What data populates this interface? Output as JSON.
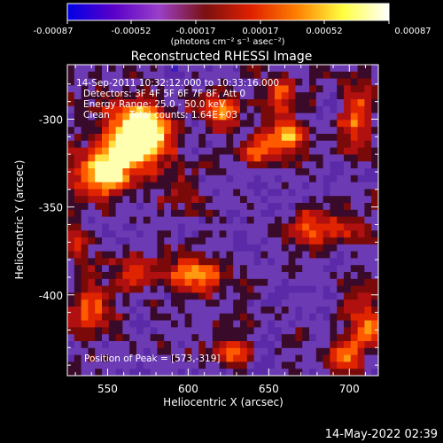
{
  "colorbar": {
    "tick_labels": [
      "-0.00087",
      "-0.00052",
      "-0.00017",
      "0.00017",
      "0.00052",
      "0.00087"
    ],
    "tick_values": [
      -0.00087,
      -0.00052,
      -0.00017,
      0.00017,
      0.00052,
      0.00087
    ],
    "unit_label": "(photons cm⁻² s⁻¹ asec⁻²)",
    "colors": [
      "#0000e6",
      "#5a00c8",
      "#9a3fc9",
      "#7a1010",
      "#e02000",
      "#ff8000",
      "#ffff40",
      "#ffffff"
    ]
  },
  "title": "Reconstructed RHESSI Image",
  "annotations": {
    "time_range": "14-Sep-2011 10:32:12.000 to 10:33:16.000",
    "detectors": "Detectors: 3F 4F 5F 6F 7F 8F, Att 0",
    "energy_range": "Energy Range: 25.0 - 50.0 keV",
    "method": "Clean",
    "total_counts": "Total counts: 1.64E+03",
    "peak": "Position of Peak = [573,-319]"
  },
  "axes": {
    "xlabel": "Heliocentric X (arcsec)",
    "ylabel": "Heliocentric Y (arcsec)",
    "x_ticks": [
      "550",
      "600",
      "650",
      "700"
    ],
    "y_ticks": [
      "-300",
      "-350",
      "-400"
    ],
    "x_tick_values": [
      550,
      600,
      650,
      700
    ],
    "y_tick_values": [
      -300,
      -350,
      -400
    ],
    "xlim": [
      525,
      718
    ],
    "ylim": [
      -446,
      -269
    ]
  },
  "footer": {
    "timestamp": "14-May-2022 02:39"
  },
  "image_features": {
    "peak": [
      573,
      -319
    ],
    "hot_spots": [
      {
        "x": 560,
        "y": -315,
        "level": 0.95,
        "rx": 18,
        "ry": 20
      },
      {
        "x": 575,
        "y": -306,
        "level": 1.0,
        "rx": 12,
        "ry": 14
      },
      {
        "x": 545,
        "y": -332,
        "level": 0.75,
        "rx": 16,
        "ry": 12
      },
      {
        "x": 620,
        "y": -295,
        "level": 0.7,
        "rx": 12,
        "ry": 10
      },
      {
        "x": 660,
        "y": -310,
        "level": 0.75,
        "rx": 12,
        "ry": 10
      },
      {
        "x": 642,
        "y": -318,
        "level": 0.6,
        "rx": 10,
        "ry": 8
      },
      {
        "x": 705,
        "y": -300,
        "level": 0.7,
        "rx": 10,
        "ry": 18
      },
      {
        "x": 605,
        "y": -388,
        "level": 0.85,
        "rx": 16,
        "ry": 10
      },
      {
        "x": 570,
        "y": -385,
        "level": 0.55,
        "rx": 12,
        "ry": 10
      },
      {
        "x": 680,
        "y": -363,
        "level": 0.6,
        "rx": 20,
        "ry": 9
      },
      {
        "x": 540,
        "y": -410,
        "level": 0.65,
        "rx": 12,
        "ry": 14
      },
      {
        "x": 710,
        "y": -415,
        "level": 0.7,
        "rx": 10,
        "ry": 16
      },
      {
        "x": 695,
        "y": -435,
        "level": 0.6,
        "rx": 12,
        "ry": 8
      },
      {
        "x": 660,
        "y": -285,
        "level": 0.55,
        "rx": 10,
        "ry": 8
      },
      {
        "x": 600,
        "y": -342,
        "level": 0.35,
        "rx": 14,
        "ry": 8
      },
      {
        "x": 530,
        "y": -372,
        "level": 0.5,
        "rx": 8,
        "ry": 10
      },
      {
        "x": 625,
        "y": -432,
        "level": 0.45,
        "rx": 14,
        "ry": 8
      }
    ]
  }
}
